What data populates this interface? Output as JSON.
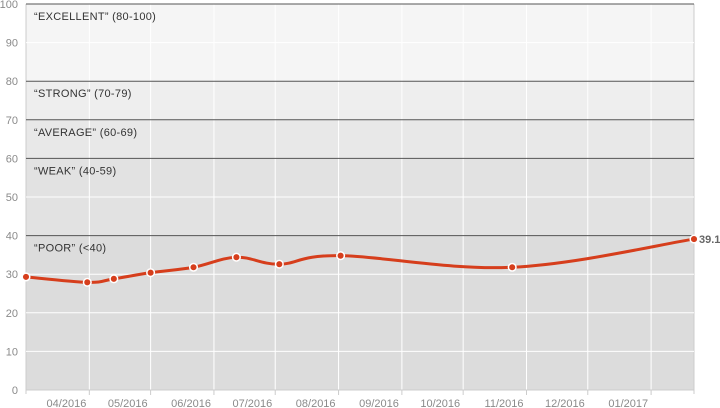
{
  "chart_data": {
    "type": "line",
    "title": "",
    "xlabel": "",
    "ylabel": "",
    "ylim": [
      0,
      100
    ],
    "yticks": [
      0,
      10,
      20,
      30,
      40,
      50,
      60,
      70,
      80,
      90,
      100
    ],
    "xticks": [
      "04/2016",
      "05/2016",
      "06/2016",
      "07/2016",
      "08/2016",
      "09/2016",
      "10/2016",
      "11/2016",
      "12/2016",
      "01/2017"
    ],
    "grid": true,
    "bands": [
      {
        "label": "“EXCELLENT” (80-100)",
        "from": 80,
        "to": 100,
        "color": "#f5f5f5"
      },
      {
        "label": "“STRONG” (70-79)",
        "from": 70,
        "to": 80,
        "color": "#eeeeee"
      },
      {
        "label": "“AVERAGE” (60-69)",
        "from": 60,
        "to": 70,
        "color": "#e8e8e8"
      },
      {
        "label": "“WEAK” (40-59)",
        "from": 40,
        "to": 60,
        "color": "#e2e2e2"
      },
      {
        "label": "“POOR” (<40)",
        "from": 0,
        "to": 40,
        "color": "#dcdcdc"
      }
    ],
    "series": [
      {
        "color": "#d63e1c",
        "x": [
          "2016-03-01",
          "2016-03-31",
          "2016-04-13",
          "2016-05-01",
          "2016-05-22",
          "2016-06-12",
          "2016-07-03",
          "2016-08-02",
          "2016-10-25",
          "2017-01-22"
        ],
        "values": [
          29.3,
          27.9,
          28.8,
          30.4,
          31.8,
          34.4,
          32.6,
          34.8,
          31.8,
          39.1
        ]
      }
    ],
    "end_label": "39.1"
  }
}
